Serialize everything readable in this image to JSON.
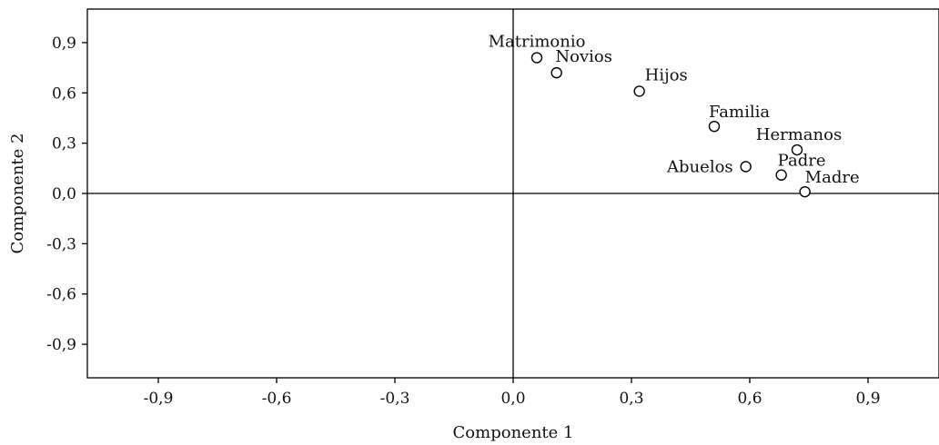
{
  "chart_data": {
    "type": "scatter",
    "xlabel": "Componente 1",
    "ylabel": "Componente 2",
    "xlim": [
      -1.08,
      1.08
    ],
    "ylim": [
      -1.1,
      1.1
    ],
    "xticks": [
      -0.9,
      -0.6,
      -0.3,
      0.0,
      0.3,
      0.6,
      0.9
    ],
    "yticks": [
      0.9,
      0.6,
      0.3,
      0.0,
      -0.3,
      -0.6,
      -0.9
    ],
    "xtick_labels": [
      "-0,9",
      "-0,6",
      "-0,3",
      "0,0",
      "0,3",
      "0,6",
      "0,9"
    ],
    "ytick_labels": [
      "0,9",
      "0,6",
      "0,3",
      "0,0",
      "-0,3",
      "-0,6",
      "-0,9"
    ],
    "zero_lines": true,
    "grid": false,
    "points": [
      {
        "label": "Matrimonio",
        "x": 0.06,
        "y": 0.81
      },
      {
        "label": "Novios",
        "x": 0.11,
        "y": 0.72
      },
      {
        "label": "Hijos",
        "x": 0.32,
        "y": 0.61
      },
      {
        "label": "Familia",
        "x": 0.51,
        "y": 0.4
      },
      {
        "label": "Hermanos",
        "x": 0.72,
        "y": 0.26
      },
      {
        "label": "Abuelos",
        "x": 0.59,
        "y": 0.16
      },
      {
        "label": "Padre",
        "x": 0.68,
        "y": 0.11
      },
      {
        "label": "Madre",
        "x": 0.74,
        "y": 0.01
      }
    ]
  }
}
